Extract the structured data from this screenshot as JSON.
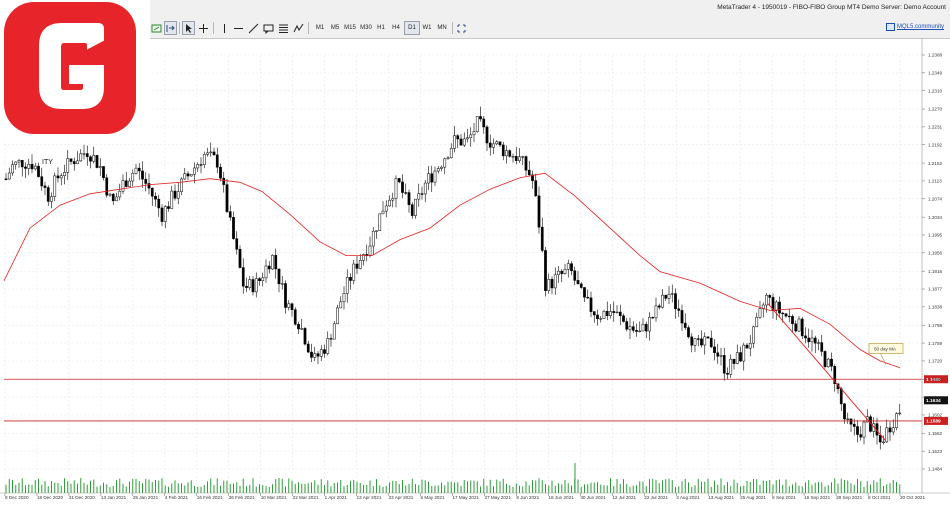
{
  "window": {
    "title": "MetaTrader 4 - 1950019 - FIBO-FIBO Group MT4 Demo Server: Demo Account"
  },
  "toolbar": {
    "timeframes": [
      "M1",
      "M5",
      "M15",
      "M30",
      "H1",
      "H4",
      "D1",
      "W1",
      "MN"
    ],
    "active_timeframe": "D1",
    "community_label": "MQL5.community"
  },
  "chart": {
    "symbol_label": "ITY",
    "ma_label": "50 day MA",
    "price_ticks": [
      "1.2388",
      "1.2349",
      "1.2310",
      "1.2270",
      "1.2231",
      "1.2192",
      "1.2152",
      "1.2113",
      "1.2074",
      "1.2034",
      "1.1995",
      "1.1956",
      "1.1916",
      "1.1877",
      "1.1838",
      "1.1798",
      "1.1759",
      "1.1720",
      "1.1680",
      "1.1641",
      "1.1602",
      "1.1562",
      "1.1523",
      "1.1484"
    ],
    "date_ticks": [
      "8 Dec 2020",
      "18 Dec 2020",
      "31 Dec 2020",
      "13 Jan 2021",
      "25 Jan 2021",
      "4 Feb 2021",
      "16 Feb 2021",
      "26 Feb 2021",
      "10 Mar 2021",
      "22 Mar 2021",
      "1 Apr 2021",
      "13 Apr 2021",
      "23 Apr 2021",
      "5 May 2021",
      "17 May 2021",
      "27 May 2021",
      "8 Jun 2021",
      "18 Jun 2021",
      "30 Jun 2021",
      "12 Jul 2021",
      "22 Jul 2021",
      "3 Aug 2021",
      "13 Aug 2021",
      "25 Aug 2021",
      "6 Sep 2021",
      "16 Sep 2021",
      "28 Sep 2021",
      "8 Oct 2021",
      "20 Oct 2021"
    ],
    "upper_level": "1.1680",
    "lower_level": "1.1589",
    "current_price": "1.1634",
    "colors": {
      "candle": "#000000",
      "ma": "#e02020",
      "level": "#cc2020",
      "volume": "#2e9e3a",
      "grid": "#e6e6e6",
      "logo": "#e8242b"
    }
  }
}
